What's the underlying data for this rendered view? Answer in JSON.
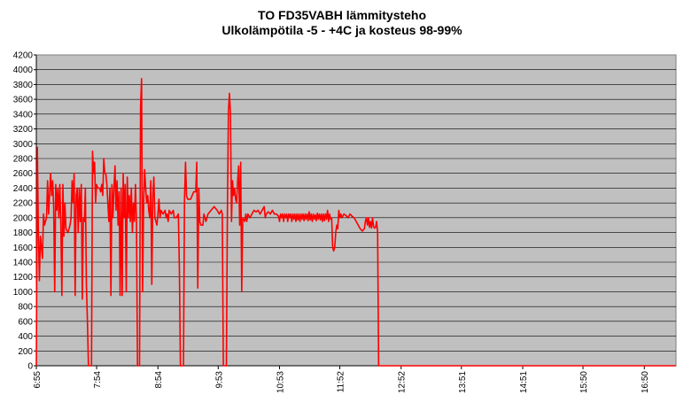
{
  "chart_data": {
    "type": "line",
    "title": "TO FD35VABH lämmitysteho",
    "subtitle": "Ulkolämpötila  -5 - +4C ja kosteus 98-99%",
    "xlabel": "",
    "ylabel": "",
    "ylim": [
      0,
      4200
    ],
    "yticks": [
      0,
      200,
      400,
      600,
      800,
      1000,
      1200,
      1400,
      1600,
      1800,
      2000,
      2200,
      2400,
      2600,
      2800,
      3000,
      3200,
      3400,
      3600,
      3800,
      4000,
      4200
    ],
    "x_tick_labels": [
      "6:55",
      "7:54",
      "8:54",
      "9:53",
      "10:53",
      "11:52",
      "12:52",
      "13:51",
      "14:51",
      "15:50",
      "16:50"
    ],
    "x_range_minutes": [
      415,
      1041
    ],
    "grid": true,
    "plot_background": "#c0c0c0",
    "series": [
      {
        "color": "#ff0000",
        "points": [
          [
            415,
            0
          ],
          [
            416,
            2950
          ],
          [
            417,
            1800
          ],
          [
            418,
            1150
          ],
          [
            419,
            1750
          ],
          [
            421,
            1450
          ],
          [
            422,
            2050
          ],
          [
            423,
            1900
          ],
          [
            425,
            2000
          ],
          [
            426,
            2500
          ],
          [
            427,
            2050
          ],
          [
            429,
            2600
          ],
          [
            430,
            2300
          ],
          [
            431,
            2500
          ],
          [
            432,
            2150
          ],
          [
            433,
            1000
          ],
          [
            434,
            2450
          ],
          [
            435,
            2100
          ],
          [
            436,
            2400
          ],
          [
            437,
            2000
          ],
          [
            438,
            2450
          ],
          [
            439,
            1900
          ],
          [
            440,
            950
          ],
          [
            441,
            2450
          ],
          [
            442,
            1750
          ],
          [
            443,
            2200
          ],
          [
            444,
            1850
          ],
          [
            446,
            1800
          ],
          [
            448,
            1900
          ],
          [
            449,
            2000
          ],
          [
            450,
            2500
          ],
          [
            451,
            2200
          ],
          [
            452,
            2600
          ],
          [
            453,
            950
          ],
          [
            454,
            2300
          ],
          [
            455,
            2400
          ],
          [
            456,
            1800
          ],
          [
            457,
            2400
          ],
          [
            458,
            1950
          ],
          [
            459,
            2450
          ],
          [
            460,
            900
          ],
          [
            461,
            2000
          ],
          [
            462,
            1950
          ],
          [
            463,
            2400
          ],
          [
            464,
            1100
          ],
          [
            465,
            600
          ],
          [
            466,
            0
          ],
          [
            469,
            0
          ],
          [
            470,
            2900
          ],
          [
            471,
            2600
          ],
          [
            472,
            2750
          ],
          [
            473,
            2200
          ],
          [
            474,
            2450
          ],
          [
            475,
            2400
          ],
          [
            477,
            2400
          ],
          [
            478,
            2350
          ],
          [
            479,
            2450
          ],
          [
            480,
            2300
          ],
          [
            481,
            2800
          ],
          [
            482,
            2600
          ],
          [
            483,
            2600
          ],
          [
            484,
            2450
          ],
          [
            485,
            2200
          ],
          [
            486,
            1950
          ],
          [
            487,
            2400
          ],
          [
            488,
            950
          ],
          [
            489,
            2450
          ],
          [
            490,
            2000
          ],
          [
            491,
            2400
          ],
          [
            492,
            2700
          ],
          [
            493,
            2100
          ],
          [
            494,
            2500
          ],
          [
            495,
            1900
          ],
          [
            496,
            2350
          ],
          [
            497,
            950
          ],
          [
            498,
            2400
          ],
          [
            499,
            950
          ],
          [
            500,
            2600
          ],
          [
            501,
            2000
          ],
          [
            502,
            2450
          ],
          [
            503,
            1000
          ],
          [
            504,
            2550
          ],
          [
            505,
            2000
          ],
          [
            506,
            2300
          ],
          [
            507,
            1950
          ],
          [
            508,
            2400
          ],
          [
            509,
            1800
          ],
          [
            510,
            2200
          ],
          [
            511,
            1950
          ],
          [
            512,
            2450
          ],
          [
            513,
            1950
          ],
          [
            514,
            0
          ],
          [
            516,
            0
          ],
          [
            517,
            3500
          ],
          [
            518,
            3880
          ],
          [
            519,
            1000
          ],
          [
            520,
            2200
          ],
          [
            521,
            2650
          ],
          [
            522,
            2400
          ],
          [
            523,
            2200
          ],
          [
            524,
            2300
          ],
          [
            525,
            2100
          ],
          [
            526,
            2000
          ],
          [
            527,
            2500
          ],
          [
            528,
            1100
          ],
          [
            529,
            2300
          ],
          [
            530,
            2550
          ],
          [
            531,
            2000
          ],
          [
            532,
            1950
          ],
          [
            533,
            1900
          ],
          [
            534,
            2050
          ],
          [
            535,
            2250
          ],
          [
            536,
            2000
          ],
          [
            537,
            2100
          ],
          [
            539,
            2050
          ],
          [
            541,
            2100
          ],
          [
            542,
            2000
          ],
          [
            543,
            2050
          ],
          [
            544,
            1950
          ],
          [
            545,
            2100
          ],
          [
            547,
            2050
          ],
          [
            549,
            2100
          ],
          [
            550,
            2000
          ],
          [
            552,
            2000
          ],
          [
            554,
            2050
          ],
          [
            555,
            1300
          ],
          [
            556,
            0
          ],
          [
            559,
            0
          ],
          [
            560,
            2250
          ],
          [
            561,
            2750
          ],
          [
            562,
            2300
          ],
          [
            563,
            2250
          ],
          [
            566,
            2250
          ],
          [
            569,
            2350
          ],
          [
            571,
            2350
          ],
          [
            572,
            2750
          ],
          [
            573,
            1050
          ],
          [
            574,
            2400
          ],
          [
            575,
            1950
          ],
          [
            576,
            1900
          ],
          [
            578,
            1900
          ],
          [
            579,
            2050
          ],
          [
            580,
            2000
          ],
          [
            581,
            1950
          ],
          [
            583,
            2050
          ],
          [
            586,
            2100
          ],
          [
            589,
            2150
          ],
          [
            592,
            2100
          ],
          [
            594,
            2050
          ],
          [
            596,
            2100
          ],
          [
            597,
            2050
          ],
          [
            598,
            0
          ],
          [
            601,
            0
          ],
          [
            602,
            2100
          ],
          [
            603,
            3450
          ],
          [
            604,
            3680
          ],
          [
            605,
            3400
          ],
          [
            606,
            1950
          ],
          [
            607,
            2500
          ],
          [
            608,
            2300
          ],
          [
            609,
            2400
          ],
          [
            610,
            2250
          ],
          [
            611,
            2200
          ],
          [
            612,
            2500
          ],
          [
            613,
            2700
          ],
          [
            614,
            1900
          ],
          [
            615,
            2750
          ],
          [
            616,
            1000
          ],
          [
            617,
            2000
          ],
          [
            619,
            1950
          ],
          [
            620,
            2050
          ],
          [
            621,
            1950
          ],
          [
            622,
            2050
          ],
          [
            624,
            2000
          ],
          [
            626,
            2050
          ],
          [
            628,
            2100
          ],
          [
            630,
            2080
          ],
          [
            632,
            2100
          ],
          [
            634,
            2050
          ],
          [
            636,
            2100
          ],
          [
            638,
            2150
          ],
          [
            639,
            2000
          ],
          [
            640,
            2050
          ],
          [
            642,
            2080
          ],
          [
            644,
            2050
          ],
          [
            646,
            2100
          ],
          [
            648,
            2050
          ],
          [
            650,
            2050
          ],
          [
            652,
            2020
          ],
          [
            653,
            1950
          ],
          [
            654,
            2050
          ],
          [
            655,
            2000
          ],
          [
            656,
            2050
          ],
          [
            657,
            1950
          ],
          [
            658,
            2050
          ],
          [
            659,
            2000
          ],
          [
            660,
            2050
          ],
          [
            661,
            1950
          ],
          [
            662,
            2050
          ],
          [
            663,
            2000
          ],
          [
            664,
            2050
          ],
          [
            665,
            1950
          ],
          [
            666,
            2050
          ],
          [
            667,
            1980
          ],
          [
            668,
            2050
          ],
          [
            669,
            1950
          ],
          [
            670,
            2050
          ],
          [
            671,
            1970
          ],
          [
            672,
            2050
          ],
          [
            673,
            1950
          ],
          [
            674,
            2050
          ],
          [
            675,
            1980
          ],
          [
            676,
            2050
          ],
          [
            677,
            1960
          ],
          [
            678,
            2050
          ],
          [
            679,
            1980
          ],
          [
            680,
            2050
          ],
          [
            681,
            1960
          ],
          [
            682,
            2080
          ],
          [
            683,
            1970
          ],
          [
            684,
            2050
          ],
          [
            685,
            1950
          ],
          [
            686,
            2050
          ],
          [
            687,
            1980
          ],
          [
            688,
            2040
          ],
          [
            689,
            1960
          ],
          [
            690,
            2060
          ],
          [
            691,
            1980
          ],
          [
            692,
            2050
          ],
          [
            693,
            1970
          ],
          [
            694,
            2050
          ],
          [
            695,
            1950
          ],
          [
            696,
            2050
          ],
          [
            697,
            1960
          ],
          [
            698,
            2050
          ],
          [
            699,
            1980
          ],
          [
            700,
            2100
          ],
          [
            701,
            1950
          ],
          [
            702,
            2050
          ],
          [
            703,
            1980
          ],
          [
            704,
            2000
          ],
          [
            705,
            1600
          ],
          [
            706,
            1550
          ],
          [
            707,
            1600
          ],
          [
            708,
            1800
          ],
          [
            709,
            1900
          ],
          [
            710,
            1850
          ],
          [
            711,
            2100
          ],
          [
            712,
            2000
          ],
          [
            713,
            2050
          ],
          [
            714,
            2000
          ],
          [
            716,
            2050
          ],
          [
            718,
            2030
          ],
          [
            720,
            2000
          ],
          [
            722,
            2050
          ],
          [
            724,
            2020
          ],
          [
            726,
            2000
          ],
          [
            728,
            1950
          ],
          [
            730,
            1900
          ],
          [
            732,
            1850
          ],
          [
            734,
            1820
          ],
          [
            736,
            1850
          ],
          [
            737,
            1950
          ],
          [
            738,
            2000
          ],
          [
            739,
            1900
          ],
          [
            740,
            2000
          ],
          [
            741,
            1870
          ],
          [
            742,
            1950
          ],
          [
            743,
            1860
          ],
          [
            744,
            2000
          ],
          [
            745,
            1880
          ],
          [
            746,
            1860
          ],
          [
            747,
            1870
          ],
          [
            748,
            1950
          ],
          [
            749,
            1800
          ],
          [
            750,
            0
          ],
          [
            752,
            0
          ],
          [
            1041,
            0
          ]
        ]
      }
    ]
  }
}
